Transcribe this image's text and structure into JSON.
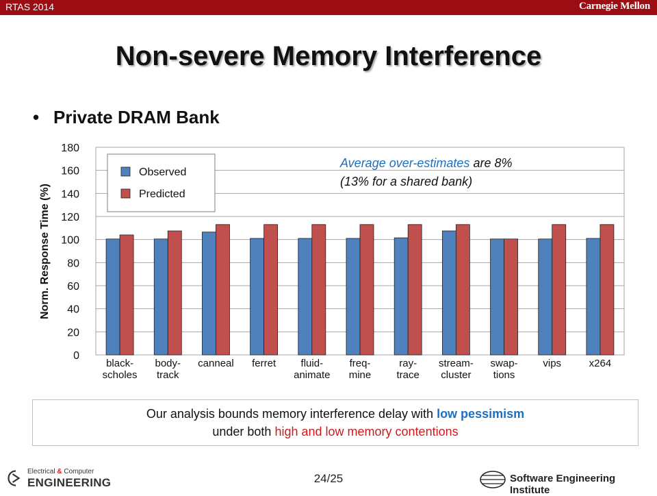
{
  "header": {
    "conference": "RTAS 2014",
    "institution": "Carnegie Mellon"
  },
  "title": "Non-severe Memory Interference",
  "bullet": "Private DRAM Bank",
  "annotation": {
    "part1": "Average over-estimates",
    "part2": " are 8%",
    "line2": "(13% for a shared bank)"
  },
  "callout": {
    "line1_pre": "Our analysis bounds memory interference delay with ",
    "line1_highlight": "low pessimism",
    "line2_pre": "under both ",
    "line2_highlight": "high and low memory contentions"
  },
  "footer": {
    "page": "24/25",
    "ece_line1_a": "Electrical ",
    "ece_amp": "&",
    "ece_line1_b": " Computer",
    "ece_line2": "ENGINEERING",
    "sei": "Software Engineering Institute"
  },
  "colors": {
    "observed": "#4f81bd",
    "predicted": "#c0504d",
    "accent_red": "#9b0d12",
    "annotation_blue": "#1f6fc0"
  },
  "chart_data": {
    "type": "bar",
    "ylabel": "Norm. Response Time (%)",
    "ylim": [
      0,
      180
    ],
    "yticks": [
      0,
      20,
      40,
      60,
      80,
      100,
      120,
      140,
      160,
      180
    ],
    "grid": true,
    "legend_position": "top-left",
    "categories": [
      [
        "black-",
        "scholes"
      ],
      [
        "body-",
        "track"
      ],
      [
        "canneal"
      ],
      [
        "ferret"
      ],
      [
        "fluid-",
        "animate"
      ],
      [
        "freq-",
        "mine"
      ],
      [
        "ray-",
        "trace"
      ],
      [
        "stream-",
        "cluster"
      ],
      [
        "swap-",
        "tions"
      ],
      [
        "vips"
      ],
      [
        "x264"
      ]
    ],
    "series": [
      {
        "name": "Observed",
        "color": "#4f81bd",
        "values": [
          100.5,
          100.5,
          106.5,
          101,
          101,
          101,
          101.5,
          107.5,
          100.5,
          100.5,
          101
        ]
      },
      {
        "name": "Predicted",
        "color": "#c0504d",
        "values": [
          104,
          107.5,
          113,
          113,
          113,
          113,
          113,
          113,
          100.5,
          113,
          113
        ]
      }
    ]
  }
}
